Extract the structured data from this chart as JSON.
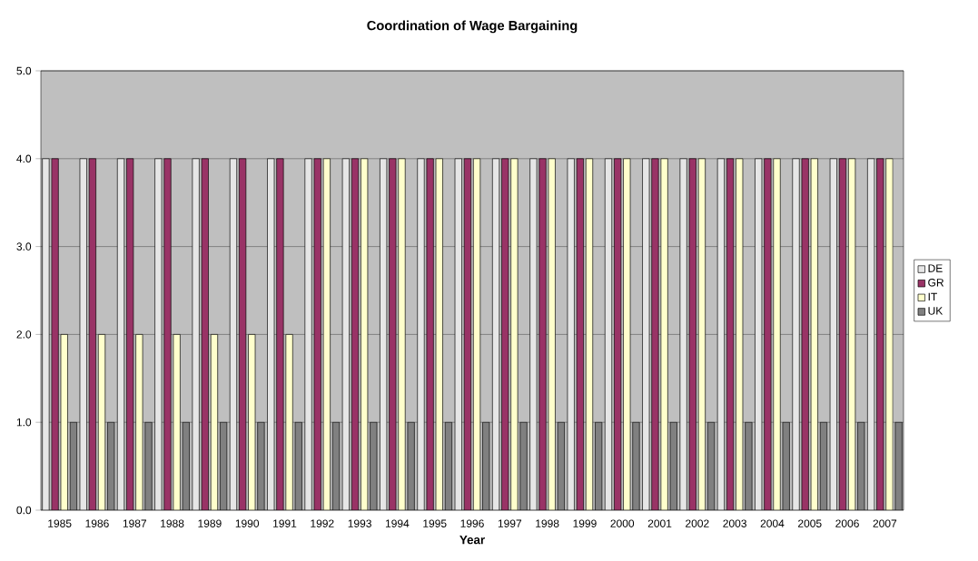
{
  "chart_data": {
    "type": "bar",
    "title": "Coordination of Wage Bargaining",
    "xlabel": "Year",
    "categories": [
      "1985",
      "1986",
      "1987",
      "1988",
      "1989",
      "1990",
      "1991",
      "1992",
      "1993",
      "1994",
      "1995",
      "1996",
      "1997",
      "1998",
      "1999",
      "2000",
      "2001",
      "2002",
      "2003",
      "2004",
      "2005",
      "2006",
      "2007"
    ],
    "series": [
      {
        "name": "DE",
        "color": "#e6e6e6",
        "values": [
          4,
          4,
          4,
          4,
          4,
          4,
          4,
          4,
          4,
          4,
          4,
          4,
          4,
          4,
          4,
          4,
          4,
          4,
          4,
          4,
          4,
          4,
          4
        ]
      },
      {
        "name": "GR",
        "color": "#993366",
        "values": [
          4,
          4,
          4,
          4,
          4,
          4,
          4,
          4,
          4,
          4,
          4,
          4,
          4,
          4,
          4,
          4,
          4,
          4,
          4,
          4,
          4,
          4,
          4
        ]
      },
      {
        "name": "IT",
        "color": "#ffffcc",
        "values": [
          2,
          2,
          2,
          2,
          2,
          2,
          2,
          4,
          4,
          4,
          4,
          4,
          4,
          4,
          4,
          4,
          4,
          4,
          4,
          4,
          4,
          4,
          4
        ]
      },
      {
        "name": "UK",
        "color": "#808080",
        "values": [
          1,
          1,
          1,
          1,
          1,
          1,
          1,
          1,
          1,
          1,
          1,
          1,
          1,
          1,
          1,
          1,
          1,
          1,
          1,
          1,
          1,
          1,
          1
        ]
      }
    ],
    "ylim": [
      0,
      5
    ],
    "yticks": [
      {
        "value": 0,
        "label": "0.0"
      },
      {
        "value": 1,
        "label": "1.0"
      },
      {
        "value": 2,
        "label": "2.0"
      },
      {
        "value": 3,
        "label": "3.0"
      },
      {
        "value": 4,
        "label": "4.0"
      },
      {
        "value": 5,
        "label": "5.0"
      }
    ],
    "grid": "y",
    "legend": "right"
  }
}
